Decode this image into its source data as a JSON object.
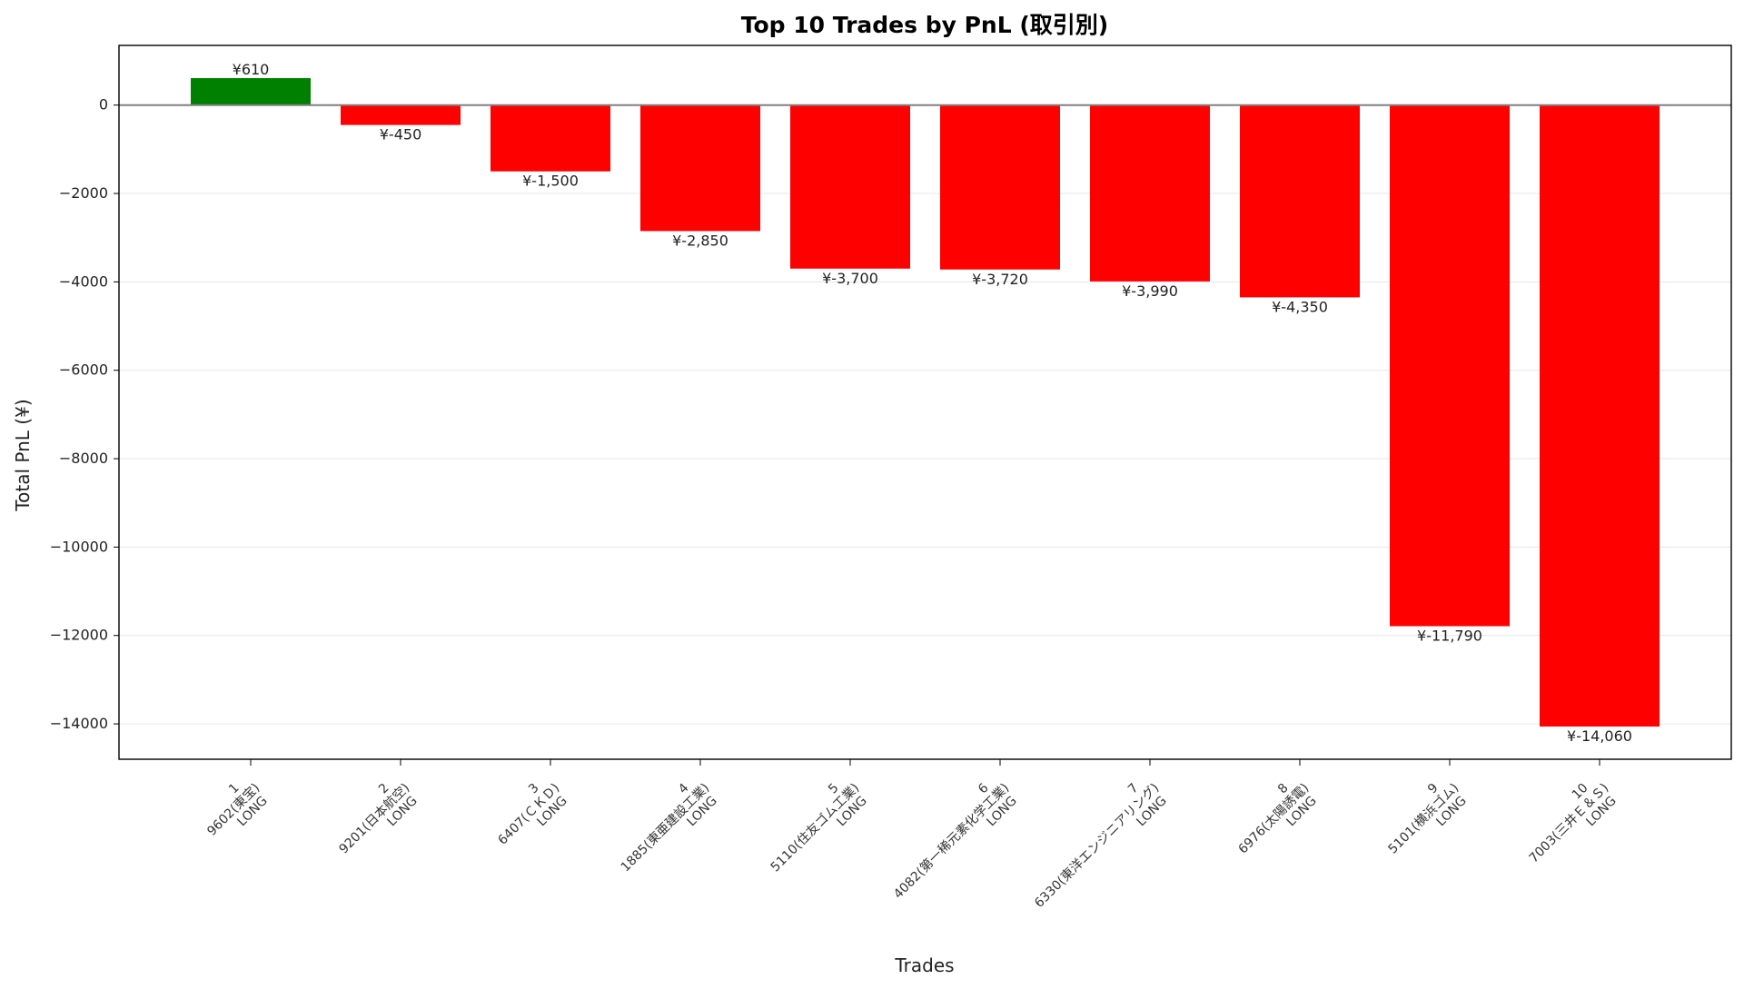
{
  "chart_data": {
    "type": "bar",
    "title": "Top 10 Trades by PnL (取引別)",
    "xlabel": "Trades",
    "ylabel": "Total PnL (¥)",
    "ylim": [
      -14800,
      1350
    ],
    "yticks": [
      0,
      -2000,
      -4000,
      -6000,
      -8000,
      -10000,
      -12000,
      -14000
    ],
    "ytick_labels": [
      "0",
      "−2000",
      "−4000",
      "−6000",
      "−8000",
      "−10000",
      "−12000",
      "−14000"
    ],
    "grid": "horizontal",
    "categories": [
      {
        "line1": "1",
        "line2": "9602(東宝)",
        "line3": "LONG"
      },
      {
        "line1": "2",
        "line2": "9201(日本航空)",
        "line3": "LONG"
      },
      {
        "line1": "3",
        "line2": "6407(ＣＫＤ)",
        "line3": "LONG"
      },
      {
        "line1": "4",
        "line2": "1885(東亜建設工業)",
        "line3": "LONG"
      },
      {
        "line1": "5",
        "line2": "5110(住友ゴム工業)",
        "line3": "LONG"
      },
      {
        "line1": "6",
        "line2": "4082(第一稀元素化学工業)",
        "line3": "LONG"
      },
      {
        "line1": "7",
        "line2": "6330(東洋エンジニアリング)",
        "line3": "LONG"
      },
      {
        "line1": "8",
        "line2": "6976(太陽誘電)",
        "line3": "LONG"
      },
      {
        "line1": "9",
        "line2": "5101(横浜ゴム)",
        "line3": "LONG"
      },
      {
        "line1": "10",
        "line2": "7003(三井Ｅ＆Ｓ)",
        "line3": "LONG"
      }
    ],
    "values": [
      610,
      -450,
      -1500,
      -2850,
      -3700,
      -3720,
      -3990,
      -4350,
      -11790,
      -14060
    ],
    "value_labels": [
      "¥610",
      "¥-450",
      "¥-1,500",
      "¥-2,850",
      "¥-3,700",
      "¥-3,720",
      "¥-3,990",
      "¥-4,350",
      "¥-11,790",
      "¥-14,060"
    ],
    "colors": {
      "positive": "#008000",
      "negative": "#ff0000",
      "zero_line": "#808080",
      "grid": "#e6e6e6"
    }
  }
}
